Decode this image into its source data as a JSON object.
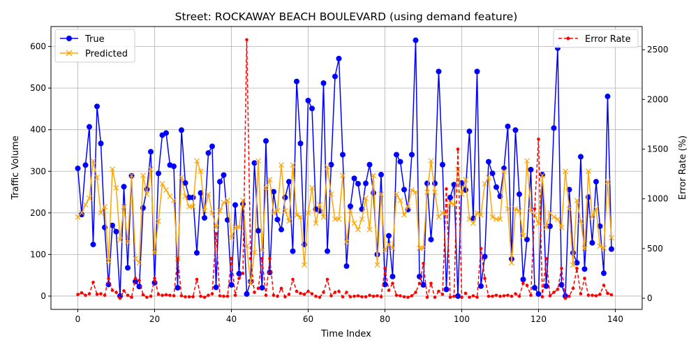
{
  "chart_data": {
    "type": "line",
    "title": "Street: ROCKAWAY BEACH BOULEVARD (using demand feature)",
    "xlabel": "Time Index",
    "ylabel": "Traffic Volume",
    "y2label": "Error Rate (%)",
    "xlim": [
      -7,
      147
    ],
    "ylim": [
      -32,
      648
    ],
    "y2lim": [
      -112,
      2733
    ],
    "xticks": [
      0,
      20,
      40,
      60,
      80,
      100,
      120,
      140
    ],
    "yticks": [
      0,
      100,
      200,
      300,
      400,
      500,
      600
    ],
    "y2ticks": [
      0,
      500,
      1000,
      1500,
      2000,
      2500
    ],
    "grid": true,
    "legend_left": "upper-left",
    "legend_right": "upper-right",
    "x": [
      0,
      1,
      2,
      3,
      4,
      5,
      6,
      7,
      8,
      9,
      10,
      11,
      12,
      13,
      14,
      15,
      16,
      17,
      18,
      19,
      20,
      21,
      22,
      23,
      24,
      25,
      26,
      27,
      28,
      29,
      30,
      31,
      32,
      33,
      34,
      35,
      36,
      37,
      38,
      39,
      40,
      41,
      42,
      43,
      44,
      45,
      46,
      47,
      48,
      49,
      50,
      51,
      52,
      53,
      54,
      55,
      56,
      57,
      58,
      59,
      60,
      61,
      62,
      63,
      64,
      65,
      66,
      67,
      68,
      69,
      70,
      71,
      72,
      73,
      74,
      75,
      76,
      77,
      78,
      79,
      80,
      81,
      82,
      83,
      84,
      85,
      86,
      87,
      88,
      89,
      90,
      91,
      92,
      93,
      94,
      95,
      96,
      97,
      98,
      99,
      100,
      101,
      102,
      103,
      104,
      105,
      106,
      107,
      108,
      109,
      110,
      111,
      112,
      113,
      114,
      115,
      116,
      117,
      118,
      119,
      120,
      121,
      122,
      123,
      124,
      125,
      126,
      127,
      128,
      129,
      130,
      131,
      132,
      133,
      134,
      135,
      136,
      137,
      138,
      139
    ],
    "series": [
      {
        "name": "True",
        "axis": "left",
        "color": "#0000ff",
        "marker": "circle",
        "linestyle": "solid",
        "values": [
          307,
          196,
          315,
          407,
          124,
          456,
          367,
          165,
          28,
          170,
          155,
          0,
          263,
          68,
          289,
          35,
          23,
          212,
          257,
          347,
          32,
          295,
          387,
          392,
          315,
          312,
          20,
          399,
          272,
          237,
          237,
          104,
          248,
          188,
          344,
          360,
          21,
          275,
          291,
          183,
          27,
          219,
          54,
          222,
          5,
          35,
          320,
          157,
          20,
          373,
          57,
          251,
          184,
          160,
          237,
          275,
          108,
          516,
          367,
          124,
          470,
          451,
          209,
          205,
          512,
          108,
          316,
          528,
          571,
          340,
          72,
          216,
          283,
          270,
          209,
          271,
          316,
          248,
          100,
          292,
          28,
          145,
          47,
          340,
          323,
          256,
          208,
          340,
          615,
          47,
          27,
          271,
          136,
          271,
          540,
          316,
          16,
          237,
          268,
          0,
          272,
          255,
          396,
          187,
          540,
          24,
          95,
          323,
          295,
          262,
          240,
          307,
          408,
          89,
          399,
          245,
          40,
          136,
          304,
          20,
          5,
          292,
          24,
          168,
          404,
          596,
          27,
          0,
          256,
          104,
          80,
          335,
          65,
          238,
          128,
          275,
          168,
          55,
          480,
          113
        ]
      },
      {
        "name": "Predicted",
        "axis": "left",
        "color": "#ffa500",
        "marker": "x",
        "linestyle": "solid",
        "values": [
          190,
          200,
          220,
          235,
          325,
          285,
          200,
          215,
          85,
          305,
          260,
          135,
          215,
          130,
          290,
          90,
          80,
          290,
          245,
          305,
          105,
          180,
          270,
          255,
          240,
          230,
          90,
          285,
          240,
          215,
          215,
          325,
          300,
          205,
          245,
          200,
          165,
          205,
          225,
          230,
          140,
          165,
          165,
          230,
          120,
          30,
          105,
          325,
          110,
          260,
          280,
          200,
          205,
          315,
          205,
          180,
          315,
          195,
          190,
          75,
          200,
          260,
          175,
          220,
          190,
          310,
          245,
          185,
          185,
          290,
          130,
          205,
          175,
          160,
          185,
          235,
          160,
          290,
          75,
          245,
          110,
          125,
          115,
          245,
          230,
          195,
          215,
          255,
          250,
          115,
          115,
          250,
          325,
          250,
          190,
          200,
          200,
          225,
          220,
          305,
          245,
          280,
          185,
          175,
          200,
          195,
          270,
          285,
          190,
          185,
          185,
          300,
          210,
          80,
          210,
          205,
          145,
          325,
          205,
          195,
          175,
          290,
          165,
          200,
          190,
          185,
          165,
          300,
          210,
          75,
          230,
          180,
          115,
          300,
          190,
          210,
          120,
          115,
          275,
          140
        ]
      },
      {
        "name": "Error Rate",
        "axis": "right",
        "color": "#ff0000",
        "marker": "dot",
        "linestyle": "dashed",
        "values": [
          38,
          55,
          30,
          45,
          160,
          40,
          45,
          30,
          200,
          80,
          60,
          0,
          75,
          30,
          10,
          200,
          180,
          35,
          10,
          20,
          200,
          40,
          30,
          35,
          30,
          25,
          400,
          25,
          15,
          15,
          15,
          190,
          20,
          10,
          30,
          45,
          650,
          25,
          20,
          20,
          400,
          30,
          200,
          250,
          2600,
          400,
          60,
          100,
          400,
          30,
          400,
          30,
          20,
          100,
          15,
          40,
          190,
          70,
          50,
          40,
          70,
          45,
          20,
          10,
          60,
          190,
          25,
          60,
          70,
          15,
          60,
          15,
          20,
          25,
          15,
          15,
          30,
          20,
          25,
          15,
          300,
          80,
          150,
          30,
          25,
          15,
          10,
          25,
          60,
          150,
          350,
          10,
          150,
          10,
          70,
          40,
          1100,
          10,
          20,
          1500,
          10,
          50,
          10,
          25,
          10,
          500,
          200,
          20,
          20,
          30,
          20,
          25,
          30,
          20,
          45,
          20,
          150,
          130,
          30,
          900,
          1600,
          15,
          400,
          25,
          60,
          90,
          300,
          0,
          20,
          100,
          300,
          45,
          200,
          30,
          30,
          25,
          40,
          130,
          50,
          35
        ]
      }
    ]
  }
}
